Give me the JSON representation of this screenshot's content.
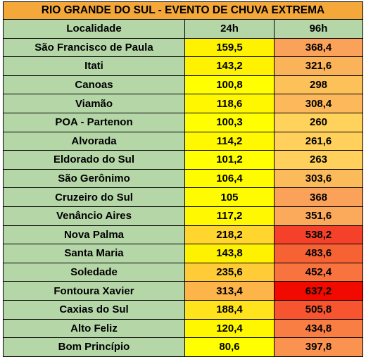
{
  "table": {
    "title": "RIO GRANDE DO SUL - EVENTO DE CHUVA EXTREMA",
    "headers": [
      "Localidade",
      "24h",
      "96h"
    ],
    "rows": [
      {
        "loc": "São Francisco de Paula",
        "h24": "159,5",
        "h96": "368,4",
        "c24": "#fff200",
        "c96": "#fba25a"
      },
      {
        "loc": "Itati",
        "h24": "143,2",
        "h96": "321,6",
        "c24": "#fff200",
        "c96": "#fbb35a"
      },
      {
        "loc": "Canoas",
        "h24": "100,8",
        "h96": "298",
        "c24": "#ffff00",
        "c96": "#fdc15a"
      },
      {
        "loc": "Viamão",
        "h24": "118,6",
        "h96": "308,4",
        "c24": "#fff700",
        "c96": "#fcb85a"
      },
      {
        "loc": "POA - Partenon",
        "h24": "100,3",
        "h96": "260",
        "c24": "#ffff00",
        "c96": "#ffd25c"
      },
      {
        "loc": "Alvorada",
        "h24": "114,2",
        "h96": "261,6",
        "c24": "#fff800",
        "c96": "#ffd15c"
      },
      {
        "loc": "Eldorado do Sul",
        "h24": "101,2",
        "h96": "263",
        "c24": "#ffff00",
        "c96": "#ffd05c"
      },
      {
        "loc": "São Gerônimo",
        "h24": "106,4",
        "h96": "303,6",
        "c24": "#fffc00",
        "c96": "#fcbb5a"
      },
      {
        "loc": "Cruzeiro do Sul",
        "h24": "105",
        "h96": "368",
        "c24": "#fffc00",
        "c96": "#fba25a"
      },
      {
        "loc": "Venâncio Aires",
        "h24": "117,2",
        "h96": "351,6",
        "c24": "#fff800",
        "c96": "#fba95a"
      },
      {
        "loc": "Nova Palma",
        "h24": "218,2",
        "h96": "538,2",
        "c24": "#ffd52e",
        "c96": "#f5402a"
      },
      {
        "loc": "Santa Maria",
        "h24": "143,8",
        "h96": "483,6",
        "c24": "#fff200",
        "c96": "#f76234"
      },
      {
        "loc": "Soledade",
        "h24": "235,6",
        "h96": "452,4",
        "c24": "#ffcb36",
        "c96": "#f8733e"
      },
      {
        "loc": "Fontoura Xavier",
        "h24": "313,4",
        "h96": "637,2",
        "c24": "#fdb54a",
        "c96": "#f00a00"
      },
      {
        "loc": "Caxias do Sul",
        "h24": "188,4",
        "h96": "505,8",
        "c24": "#ffe31c",
        "c96": "#f65530"
      },
      {
        "loc": "Alto Feliz",
        "h24": "120,4",
        "h96": "434,8",
        "c24": "#fff700",
        "c96": "#f97e44"
      },
      {
        "loc": "Bom Princípio",
        "h24": "80,6",
        "h96": "397,8",
        "c24": "#ffff00",
        "c96": "#fa9250"
      }
    ]
  }
}
